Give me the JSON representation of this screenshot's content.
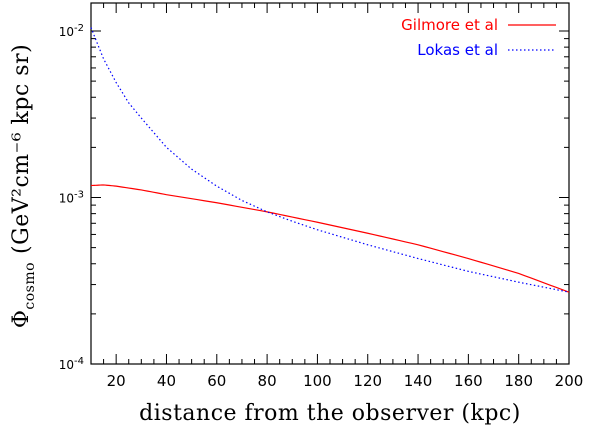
{
  "chart_data": {
    "type": "line",
    "xlabel": "distance from the observer (kpc)",
    "ylabel": "Φ",
    "ylabel_sub": "cosmo",
    "ylabel_units": "(GeV²cm⁻⁶ kpc sr)",
    "xlim": [
      10,
      200
    ],
    "ylim": [
      0.0001,
      0.02
    ],
    "yscale": "log",
    "x_ticks": [
      20,
      40,
      60,
      80,
      100,
      120,
      140,
      160,
      180,
      200
    ],
    "x_tick_labels": [
      "20",
      "40",
      "60",
      "80",
      "100",
      "120",
      "140",
      "160",
      "180",
      "200"
    ],
    "y_ticks": [
      0.0001,
      0.001,
      0.01
    ],
    "y_tick_labels": [
      {
        "base": "10",
        "exp": "-4"
      },
      {
        "base": "10",
        "exp": "-3"
      },
      {
        "base": "10",
        "exp": "-2"
      }
    ],
    "grid": false,
    "legend_position": "top-right",
    "series": [
      {
        "name": "Gilmore et al",
        "color": "#ff0000",
        "style": "solid",
        "x": [
          10,
          15,
          20,
          30,
          40,
          60,
          80,
          100,
          120,
          140,
          160,
          180,
          200
        ],
        "y": [
          0.00118,
          0.00119,
          0.00117,
          0.00111,
          0.00104,
          0.00093,
          0.00082,
          0.00071,
          0.00061,
          0.00052,
          0.00043,
          0.00035,
          0.00027
        ]
      },
      {
        "name": "Lokas et al",
        "color": "#0000ff",
        "style": "dotted",
        "x": [
          10,
          12,
          15,
          20,
          25,
          30,
          40,
          50,
          60,
          70,
          80,
          90,
          100,
          120,
          140,
          160,
          180,
          200
        ],
        "y": [
          0.0105,
          0.0088,
          0.0068,
          0.0049,
          0.0037,
          0.003,
          0.002,
          0.00148,
          0.00117,
          0.00096,
          0.00082,
          0.00072,
          0.00064,
          0.00052,
          0.00043,
          0.00036,
          0.00031,
          0.00027
        ]
      }
    ]
  }
}
